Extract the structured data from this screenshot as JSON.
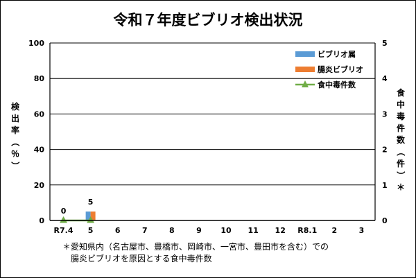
{
  "chart_data": {
    "type": "bar",
    "title": "令和７年度ビブリオ検出状況",
    "categories": [
      "R7.4",
      "5",
      "6",
      "7",
      "8",
      "9",
      "10",
      "11",
      "12",
      "R8.1",
      "2",
      "3"
    ],
    "series": [
      {
        "name": "ビブリオ属",
        "type": "bar",
        "axis": "left",
        "color": "#5b9bd5",
        "values": [
          0,
          5,
          null,
          null,
          null,
          null,
          null,
          null,
          null,
          null,
          null,
          null
        ]
      },
      {
        "name": "腸炎ビブリオ",
        "type": "bar",
        "axis": "left",
        "color": "#ed7d31",
        "values": [
          0,
          5,
          null,
          null,
          null,
          null,
          null,
          null,
          null,
          null,
          null,
          null
        ]
      },
      {
        "name": "食中毒件数",
        "type": "line",
        "axis": "right",
        "color": "#70ad47",
        "values": [
          0,
          0,
          null,
          null,
          null,
          null,
          null,
          null,
          null,
          null,
          null,
          null
        ]
      }
    ],
    "data_labels": [
      {
        "category": "R7.4",
        "text": "0"
      },
      {
        "category": "5",
        "text": "5"
      }
    ],
    "ylabel_left": "検出率（％）",
    "ylabel_right": "食中毒件数（件）＊",
    "ylim_left": [
      0,
      100
    ],
    "yticks_left": [
      0,
      20,
      40,
      60,
      80,
      100
    ],
    "ylim_right": [
      0,
      5
    ],
    "yticks_right": [
      0,
      1,
      2,
      3,
      4,
      5
    ],
    "grid": true,
    "legend_position": "top-right",
    "footnote_line1": "＊愛知県内（名古屋市、豊橋市、岡崎市、一宮市、豊田市を含む）での",
    "footnote_line2": "腸炎ビブリオを原因とする食中毒件数"
  }
}
